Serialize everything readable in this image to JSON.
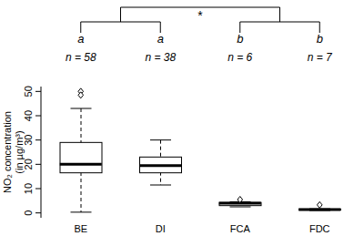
{
  "chart_data": {
    "type": "box",
    "ylabel": [
      "NO₂ concentration",
      "(in µg/m³)"
    ],
    "categories": [
      "BE",
      "DI",
      "FCA",
      "FDC"
    ],
    "min": [
      0.3,
      11.5,
      2.5,
      1.0
    ],
    "q1": [
      16.5,
      16.5,
      3.0,
      1.2
    ],
    "median": [
      20,
      19.5,
      4.0,
      1.4
    ],
    "q3": [
      29,
      23,
      4.3,
      1.6
    ],
    "max": [
      43,
      30,
      4.6,
      1.7
    ],
    "outliers": [
      [
        50,
        48.5
      ],
      [],
      [
        5.5
      ],
      [
        3.3
      ]
    ],
    "ylim": [
      -2,
      52
    ],
    "yticks": [
      0,
      10,
      20,
      30,
      40,
      50
    ],
    "group_letters": [
      "a",
      "a",
      "b",
      "b"
    ],
    "n_labels": [
      "n = 58",
      "n = 38",
      "n = 6",
      "n = 7"
    ],
    "significance": "*",
    "color": "#000000"
  }
}
